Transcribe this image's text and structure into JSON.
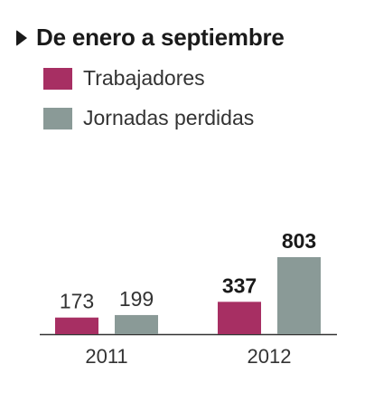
{
  "title": "De enero a septiembre",
  "colors": {
    "series1": "#a72f63",
    "series2": "#8a9a97",
    "axis": "#333333",
    "text": "#333333"
  },
  "chart_data": {
    "type": "bar",
    "title": "De enero a septiembre",
    "categories": [
      "2011",
      "2012"
    ],
    "series": [
      {
        "name": "Trabajadores",
        "values": [
          173,
          337
        ],
        "labels": [
          "173",
          "337"
        ],
        "label_bold": [
          false,
          true
        ]
      },
      {
        "name": "Jornadas perdidas",
        "values": [
          199,
          803
        ],
        "labels": [
          "199",
          "803"
        ],
        "label_bold": [
          false,
          true
        ]
      }
    ],
    "legend": "top-left",
    "grid": false,
    "ylim": [
      0,
      920
    ]
  }
}
